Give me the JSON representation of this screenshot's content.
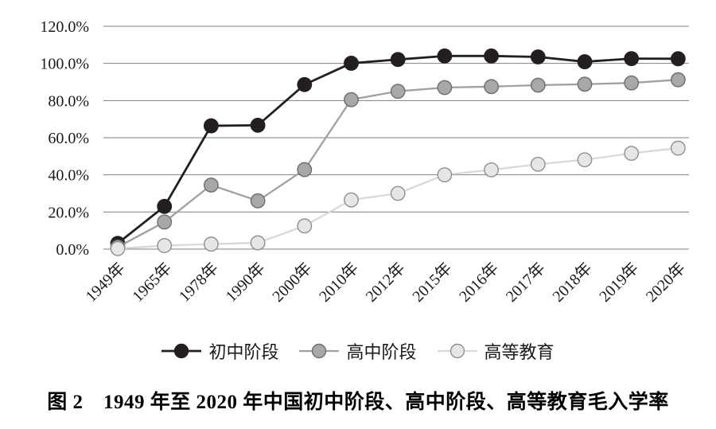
{
  "figure": {
    "caption": "图 2　1949 年至 2020 年中国初中阶段、高中阶段、高等教育毛入学率"
  },
  "chart_data": {
    "type": "line",
    "title": "",
    "xlabel": "",
    "ylabel": "",
    "categories": [
      "1949年",
      "1965年",
      "1978年",
      "1990年",
      "2000年",
      "2010年",
      "2012年",
      "2015年",
      "2016年",
      "2017年",
      "2018年",
      "2019年",
      "2020年"
    ],
    "series": [
      {
        "name": "初中阶段",
        "values": [
          3.1,
          23.0,
          66.4,
          66.7,
          88.6,
          100.1,
          102.1,
          104.0,
          104.0,
          103.5,
          100.9,
          102.6,
          102.5
        ],
        "line_color": "#231f20",
        "marker_fill": "#231f20",
        "marker_stroke": "#231f20",
        "line_width": 2.8
      },
      {
        "name": "高中阶段",
        "values": [
          1.1,
          14.6,
          34.5,
          26.0,
          42.8,
          80.5,
          85.0,
          87.0,
          87.5,
          88.3,
          88.8,
          89.5,
          91.2
        ],
        "line_color": "#a0a0a0",
        "marker_fill": "#a8a8a8",
        "marker_stroke": "#6d6d6d",
        "line_width": 2.3
      },
      {
        "name": "高等教育",
        "values": [
          0.3,
          1.9,
          2.7,
          3.4,
          12.5,
          26.5,
          30.0,
          40.0,
          42.7,
          45.7,
          48.1,
          51.6,
          54.4
        ],
        "line_color": "#d8d8d8",
        "marker_fill": "#e6e6e6",
        "marker_stroke": "#8f8f8f",
        "line_width": 2.3
      }
    ],
    "ylim": [
      0,
      120
    ],
    "ytick_step": 20,
    "ytick_labels": [
      "0.0%",
      "20.0%",
      "40.0%",
      "60.0%",
      "80.0%",
      "100.0%",
      "120.0%"
    ],
    "grid": true,
    "gridline_color": "#7f7f7f",
    "legend_position": "bottom",
    "background": "#ffffff",
    "text_color": "#1a1a1a"
  }
}
